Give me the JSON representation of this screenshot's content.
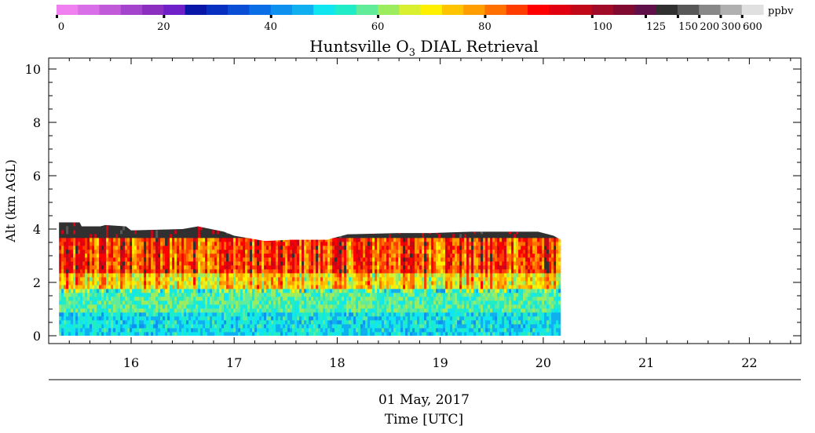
{
  "chart_data": {
    "type": "heatmap",
    "title": "Huntsville O",
    "title_subscript": "3",
    "title_suffix": " DIAL Retrieval",
    "ylabel": "Alt (km AGL)",
    "date_label": "01 May, 2017",
    "xlabel": "Time [UTC]",
    "xlim": [
      15.2,
      22.5
    ],
    "ylim": [
      0,
      10.2
    ],
    "x_ticks": [
      "16",
      "17",
      "18",
      "19",
      "20",
      "21",
      "22"
    ],
    "y_ticks": [
      "0",
      "2",
      "4",
      "6",
      "8",
      "10"
    ],
    "data_x_range": [
      15.3,
      20.17
    ],
    "colorbar": {
      "unit": "ppbv",
      "tick_labels": [
        "0",
        "20",
        "40",
        "60",
        "80",
        "100",
        "125",
        "150",
        "200",
        "300",
        "600"
      ],
      "colors": [
        "#f07ff0",
        "#d86ee8",
        "#c05ad8",
        "#a443cc",
        "#8a2fc0",
        "#7020c8",
        "#0a16a8",
        "#0830c0",
        "#0a4ed6",
        "#0a6ee6",
        "#0e90ee",
        "#10b0f0",
        "#10e6f0",
        "#20ecc8",
        "#60ec98",
        "#9cec60",
        "#d8f030",
        "#fff000",
        "#ffc400",
        "#ff9e00",
        "#ff7000",
        "#ff3c00",
        "#ff0000",
        "#e00010",
        "#c00818",
        "#a00c28",
        "#800a30",
        "#601048",
        "#303030",
        "#585858",
        "#888888",
        "#b0b0b0",
        "#e0e0e0"
      ]
    },
    "top_altitude": [
      [
        15.3,
        4.25
      ],
      [
        15.5,
        4.25
      ],
      [
        15.52,
        4.1
      ],
      [
        15.7,
        4.1
      ],
      [
        15.75,
        4.15
      ],
      [
        15.95,
        4.1
      ],
      [
        16.0,
        3.95
      ],
      [
        16.5,
        4.0
      ],
      [
        16.65,
        4.1
      ],
      [
        16.9,
        3.9
      ],
      [
        17.0,
        3.75
      ],
      [
        17.3,
        3.55
      ],
      [
        17.55,
        3.6
      ],
      [
        17.9,
        3.6
      ],
      [
        18.1,
        3.8
      ],
      [
        18.6,
        3.85
      ],
      [
        18.9,
        3.85
      ],
      [
        19.3,
        3.9
      ],
      [
        19.7,
        3.9
      ],
      [
        19.95,
        3.9
      ],
      [
        20.1,
        3.75
      ],
      [
        20.17,
        3.6
      ]
    ],
    "layers": [
      {
        "altitude": [
          0,
          0.9
        ],
        "ozone_ppbv": 50
      },
      {
        "altitude": [
          0.9,
          1.7
        ],
        "ozone_ppbv": 57
      },
      {
        "altitude": [
          1.7,
          2.4
        ],
        "ozone_ppbv": 72
      },
      {
        "altitude": [
          2.4,
          3.6
        ],
        "ozone_ppbv": 86
      },
      {
        "altitude": [
          3.6,
          4.3
        ],
        "ozone_ppbv": 110
      }
    ]
  }
}
